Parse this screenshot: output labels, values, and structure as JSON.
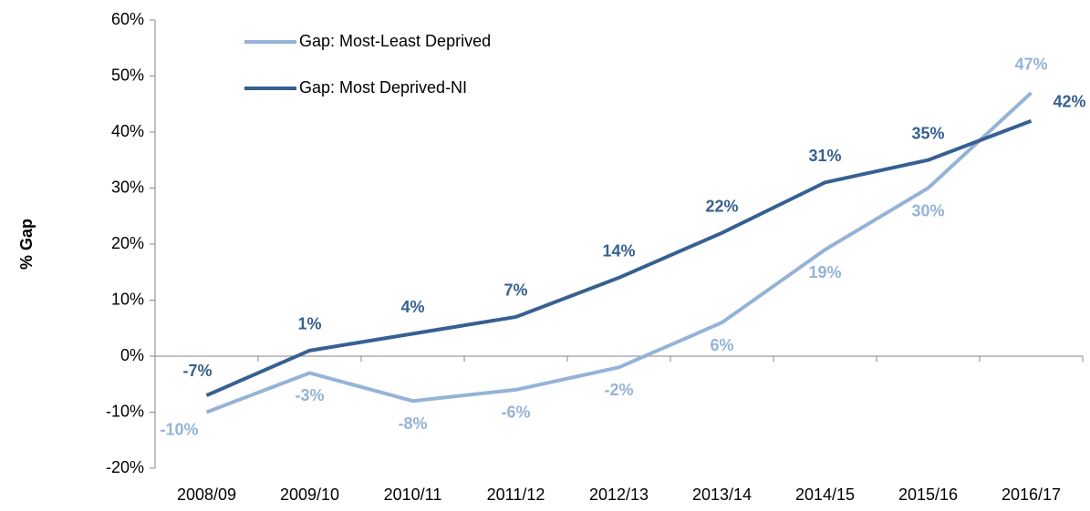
{
  "chart_data": {
    "type": "line",
    "y_label": "% Gap",
    "categories": [
      "2008/09",
      "2009/10",
      "2010/11",
      "2011/12",
      "2012/13",
      "2013/14",
      "2014/15",
      "2015/16",
      "2016/17"
    ],
    "series": [
      {
        "name": "Gap: Most-Least Deprived",
        "color": "#95b3d7",
        "values": [
          -10,
          -3,
          -8,
          -6,
          -2,
          6,
          19,
          30,
          47
        ],
        "value_labels": [
          "-10%",
          "-3%",
          "-8%",
          "-6%",
          "-2%",
          "6%",
          "19%",
          "30%",
          "47%"
        ]
      },
      {
        "name": "Gap: Most Deprived-NI",
        "color": "#376092",
        "values": [
          -7,
          1,
          4,
          7,
          14,
          22,
          31,
          35,
          42
        ],
        "value_labels": [
          "-7%",
          "1%",
          "4%",
          "7%",
          "14%",
          "22%",
          "31%",
          "35%",
          "42%"
        ]
      }
    ],
    "ylim": [
      -20,
      60
    ],
    "yticks": [
      {
        "value": -20,
        "label": "-20%"
      },
      {
        "value": -10,
        "label": "-10%"
      },
      {
        "value": 0,
        "label": "0%"
      },
      {
        "value": 10,
        "label": "10%"
      },
      {
        "value": 20,
        "label": "20%"
      },
      {
        "value": 30,
        "label": "30%"
      },
      {
        "value": 40,
        "label": "40%"
      },
      {
        "value": 50,
        "label": "50%"
      },
      {
        "value": 60,
        "label": "60%"
      }
    ],
    "grid": false,
    "legend": "top-left"
  }
}
